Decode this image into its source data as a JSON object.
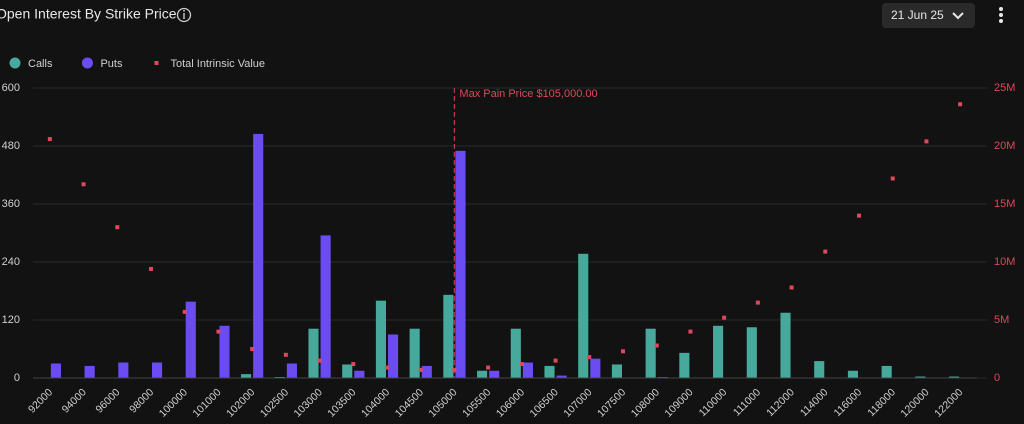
{
  "header": {
    "title": "Open Interest By Strike Price",
    "date": "21 Jun 25"
  },
  "chart_data": {
    "type": "bar",
    "legend": "top-left",
    "grid": true,
    "categories": [
      "92000",
      "94000",
      "96000",
      "98000",
      "100000",
      "101000",
      "102000",
      "102500",
      "103000",
      "103500",
      "104000",
      "104500",
      "105000",
      "105500",
      "106000",
      "106500",
      "107000",
      "107500",
      "108000",
      "109000",
      "110000",
      "111000",
      "112000",
      "114000",
      "116000",
      "118000",
      "120000",
      "122000"
    ],
    "series": [
      {
        "name": "Calls",
        "color": "#46a99b",
        "values": [
          0,
          0,
          0,
          0,
          0,
          0,
          8,
          2,
          102,
          28,
          160,
          102,
          172,
          15,
          102,
          25,
          257,
          28,
          102,
          52,
          108,
          105,
          135,
          35,
          15,
          25,
          3,
          3
        ]
      },
      {
        "name": "Puts",
        "color": "#6a4cf2",
        "values": [
          30,
          25,
          32,
          32,
          158,
          108,
          505,
          30,
          295,
          15,
          90,
          25,
          470,
          15,
          32,
          5,
          40,
          0,
          2,
          0,
          0,
          0,
          0,
          0,
          0,
          0,
          0,
          0
        ]
      },
      {
        "name": "Total Intrinsic Value",
        "type": "scatter",
        "axis": "y2",
        "color": "#e0475a",
        "values": [
          20600000,
          16700000,
          13000000,
          9400000,
          5700000,
          4000000,
          2500000,
          2000000,
          1500000,
          1200000,
          900000,
          700000,
          700000,
          900000,
          1200000,
          1500000,
          1800000,
          2300000,
          2800000,
          4000000,
          5200000,
          6500000,
          7800000,
          10900000,
          14000000,
          17200000,
          20400000,
          23600000
        ]
      }
    ],
    "ylim": [
      0,
      600
    ],
    "yticks": [
      0,
      120,
      240,
      360,
      480,
      600
    ],
    "y2lim": [
      0,
      25000000
    ],
    "y2ticks": [
      0,
      {
        "value": 5000000,
        "label": "5M"
      },
      {
        "value": 10000000,
        "label": "10M"
      },
      {
        "value": 15000000,
        "label": "15M"
      },
      {
        "value": 20000000,
        "label": "20M"
      },
      {
        "value": 25000000,
        "label": "25M"
      }
    ],
    "annotation": {
      "text": "Max Pain Price $105,000.00",
      "x": 105000
    }
  }
}
